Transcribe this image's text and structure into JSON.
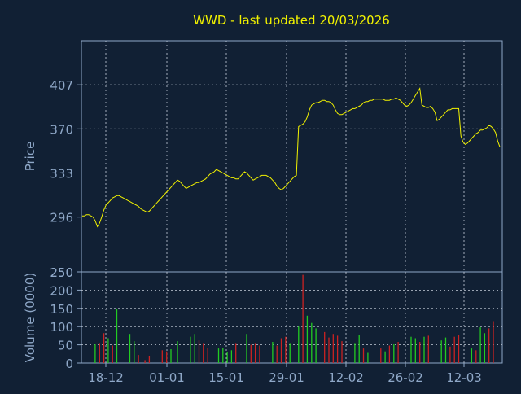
{
  "title": "WWD - last updated 20/03/2026",
  "colors": {
    "background": "#112034",
    "axis_text": "#8fa8c8",
    "title": "#f2f200",
    "price_line": "#f2f200",
    "grid": "#c8d0dc",
    "frame": "#8fa8c8",
    "volume_up": "#22cc22",
    "volume_down": "#cc2222"
  },
  "chart_data": [
    {
      "type": "line",
      "panel": "price",
      "ylabel": "Price",
      "ylim": [
        250,
        444
      ],
      "yticks": [
        250,
        296,
        333,
        370,
        407
      ],
      "grid": true,
      "series": [
        {
          "values": [
            297,
            297,
            298,
            298,
            297,
            296,
            293,
            288,
            291,
            296,
            302,
            306,
            308,
            310,
            312,
            313,
            314,
            314,
            313,
            312,
            311,
            310,
            309,
            308,
            307,
            306,
            305,
            303,
            302,
            301,
            300,
            301,
            303,
            305,
            307,
            309,
            311,
            313,
            315,
            317,
            319,
            321,
            323,
            325,
            327,
            326,
            324,
            322,
            320,
            321,
            322,
            323,
            324,
            325,
            325,
            326,
            327,
            328,
            330,
            332,
            333,
            334,
            336,
            335,
            334,
            333,
            332,
            331,
            330,
            329,
            329,
            328,
            328,
            330,
            332,
            334,
            333,
            331,
            329,
            327,
            328,
            329,
            330,
            331,
            331,
            331,
            330,
            329,
            327,
            325,
            322,
            320,
            319,
            320,
            322,
            324,
            326,
            328,
            330,
            331,
            372,
            373,
            374,
            376,
            380,
            386,
            390,
            391,
            392,
            392,
            393,
            394,
            394,
            393,
            393,
            392,
            390,
            386,
            383,
            382,
            382,
            383,
            384,
            385,
            386,
            387,
            387,
            388,
            389,
            390,
            392,
            393,
            393,
            394,
            394,
            395,
            395,
            395,
            395,
            395,
            394,
            394,
            394,
            395,
            395,
            396,
            395,
            394,
            392,
            390,
            389,
            390,
            392,
            395,
            398,
            401,
            404,
            390,
            389,
            388,
            388,
            389,
            387,
            384,
            377,
            378,
            380,
            382,
            384,
            386,
            386,
            387,
            387,
            387,
            387,
            364,
            359,
            357,
            358,
            360,
            362,
            364,
            366,
            367,
            369,
            369,
            370,
            371,
            373,
            372,
            370,
            367,
            360,
            355
          ]
        }
      ]
    },
    {
      "type": "bar",
      "panel": "volume",
      "ylabel": "Volume (0000)",
      "ylim": [
        0,
        250
      ],
      "yticks": [
        0,
        50,
        100,
        150,
        200,
        250
      ],
      "grid": true,
      "xlabels": [
        "18-12",
        "01-01",
        "15-01",
        "29-01",
        "12-02",
        "26-02",
        "12-03"
      ],
      "bars": [
        {
          "i": 6,
          "v": 52,
          "dir": "up"
        },
        {
          "i": 8,
          "v": 55,
          "dir": "down"
        },
        {
          "i": 10,
          "v": 82,
          "dir": "down"
        },
        {
          "i": 12,
          "v": 68,
          "dir": "up"
        },
        {
          "i": 14,
          "v": 48,
          "dir": "down"
        },
        {
          "i": 16,
          "v": 148,
          "dir": "up"
        },
        {
          "i": 22,
          "v": 80,
          "dir": "up"
        },
        {
          "i": 24,
          "v": 60,
          "dir": "up"
        },
        {
          "i": 26,
          "v": 22,
          "dir": "down"
        },
        {
          "i": 29,
          "v": 8,
          "dir": "down"
        },
        {
          "i": 31,
          "v": 20,
          "dir": "down"
        },
        {
          "i": 37,
          "v": 35,
          "dir": "down"
        },
        {
          "i": 39,
          "v": 32,
          "dir": "down"
        },
        {
          "i": 41,
          "v": 38,
          "dir": "up"
        },
        {
          "i": 44,
          "v": 60,
          "dir": "up"
        },
        {
          "i": 50,
          "v": 72,
          "dir": "up"
        },
        {
          "i": 52,
          "v": 80,
          "dir": "up"
        },
        {
          "i": 54,
          "v": 62,
          "dir": "down"
        },
        {
          "i": 56,
          "v": 55,
          "dir": "down"
        },
        {
          "i": 58,
          "v": 42,
          "dir": "down"
        },
        {
          "i": 63,
          "v": 40,
          "dir": "up"
        },
        {
          "i": 65,
          "v": 42,
          "dir": "up"
        },
        {
          "i": 67,
          "v": 30,
          "dir": "up"
        },
        {
          "i": 69,
          "v": 35,
          "dir": "up"
        },
        {
          "i": 71,
          "v": 55,
          "dir": "down"
        },
        {
          "i": 76,
          "v": 80,
          "dir": "up"
        },
        {
          "i": 78,
          "v": 50,
          "dir": "down"
        },
        {
          "i": 80,
          "v": 55,
          "dir": "down"
        },
        {
          "i": 82,
          "v": 48,
          "dir": "down"
        },
        {
          "i": 88,
          "v": 58,
          "dir": "up"
        },
        {
          "i": 90,
          "v": 48,
          "dir": "down"
        },
        {
          "i": 92,
          "v": 68,
          "dir": "down"
        },
        {
          "i": 94,
          "v": 72,
          "dir": "down"
        },
        {
          "i": 96,
          "v": 55,
          "dir": "up"
        },
        {
          "i": 100,
          "v": 100,
          "dir": "up"
        },
        {
          "i": 102,
          "v": 242,
          "dir": "down"
        },
        {
          "i": 104,
          "v": 130,
          "dir": "up"
        },
        {
          "i": 106,
          "v": 110,
          "dir": "up"
        },
        {
          "i": 108,
          "v": 95,
          "dir": "up"
        },
        {
          "i": 112,
          "v": 85,
          "dir": "down"
        },
        {
          "i": 114,
          "v": 70,
          "dir": "down"
        },
        {
          "i": 116,
          "v": 80,
          "dir": "down"
        },
        {
          "i": 118,
          "v": 75,
          "dir": "down"
        },
        {
          "i": 120,
          "v": 60,
          "dir": "down"
        },
        {
          "i": 126,
          "v": 55,
          "dir": "up"
        },
        {
          "i": 128,
          "v": 78,
          "dir": "up"
        },
        {
          "i": 130,
          "v": 40,
          "dir": "down"
        },
        {
          "i": 132,
          "v": 28,
          "dir": "up"
        },
        {
          "i": 138,
          "v": 40,
          "dir": "down"
        },
        {
          "i": 140,
          "v": 32,
          "dir": "up"
        },
        {
          "i": 142,
          "v": 48,
          "dir": "down"
        },
        {
          "i": 144,
          "v": 52,
          "dir": "up"
        },
        {
          "i": 146,
          "v": 58,
          "dir": "down"
        },
        {
          "i": 152,
          "v": 72,
          "dir": "up"
        },
        {
          "i": 154,
          "v": 68,
          "dir": "up"
        },
        {
          "i": 156,
          "v": 58,
          "dir": "down"
        },
        {
          "i": 158,
          "v": 72,
          "dir": "up"
        },
        {
          "i": 160,
          "v": 75,
          "dir": "down"
        },
        {
          "i": 166,
          "v": 62,
          "dir": "up"
        },
        {
          "i": 168,
          "v": 70,
          "dir": "up"
        },
        {
          "i": 170,
          "v": 45,
          "dir": "down"
        },
        {
          "i": 172,
          "v": 72,
          "dir": "down"
        },
        {
          "i": 174,
          "v": 78,
          "dir": "down"
        },
        {
          "i": 180,
          "v": 40,
          "dir": "up"
        },
        {
          "i": 182,
          "v": 35,
          "dir": "down"
        },
        {
          "i": 184,
          "v": 98,
          "dir": "up"
        },
        {
          "i": 186,
          "v": 82,
          "dir": "up"
        },
        {
          "i": 188,
          "v": 95,
          "dir": "down"
        },
        {
          "i": 190,
          "v": 115,
          "dir": "down"
        }
      ]
    }
  ]
}
